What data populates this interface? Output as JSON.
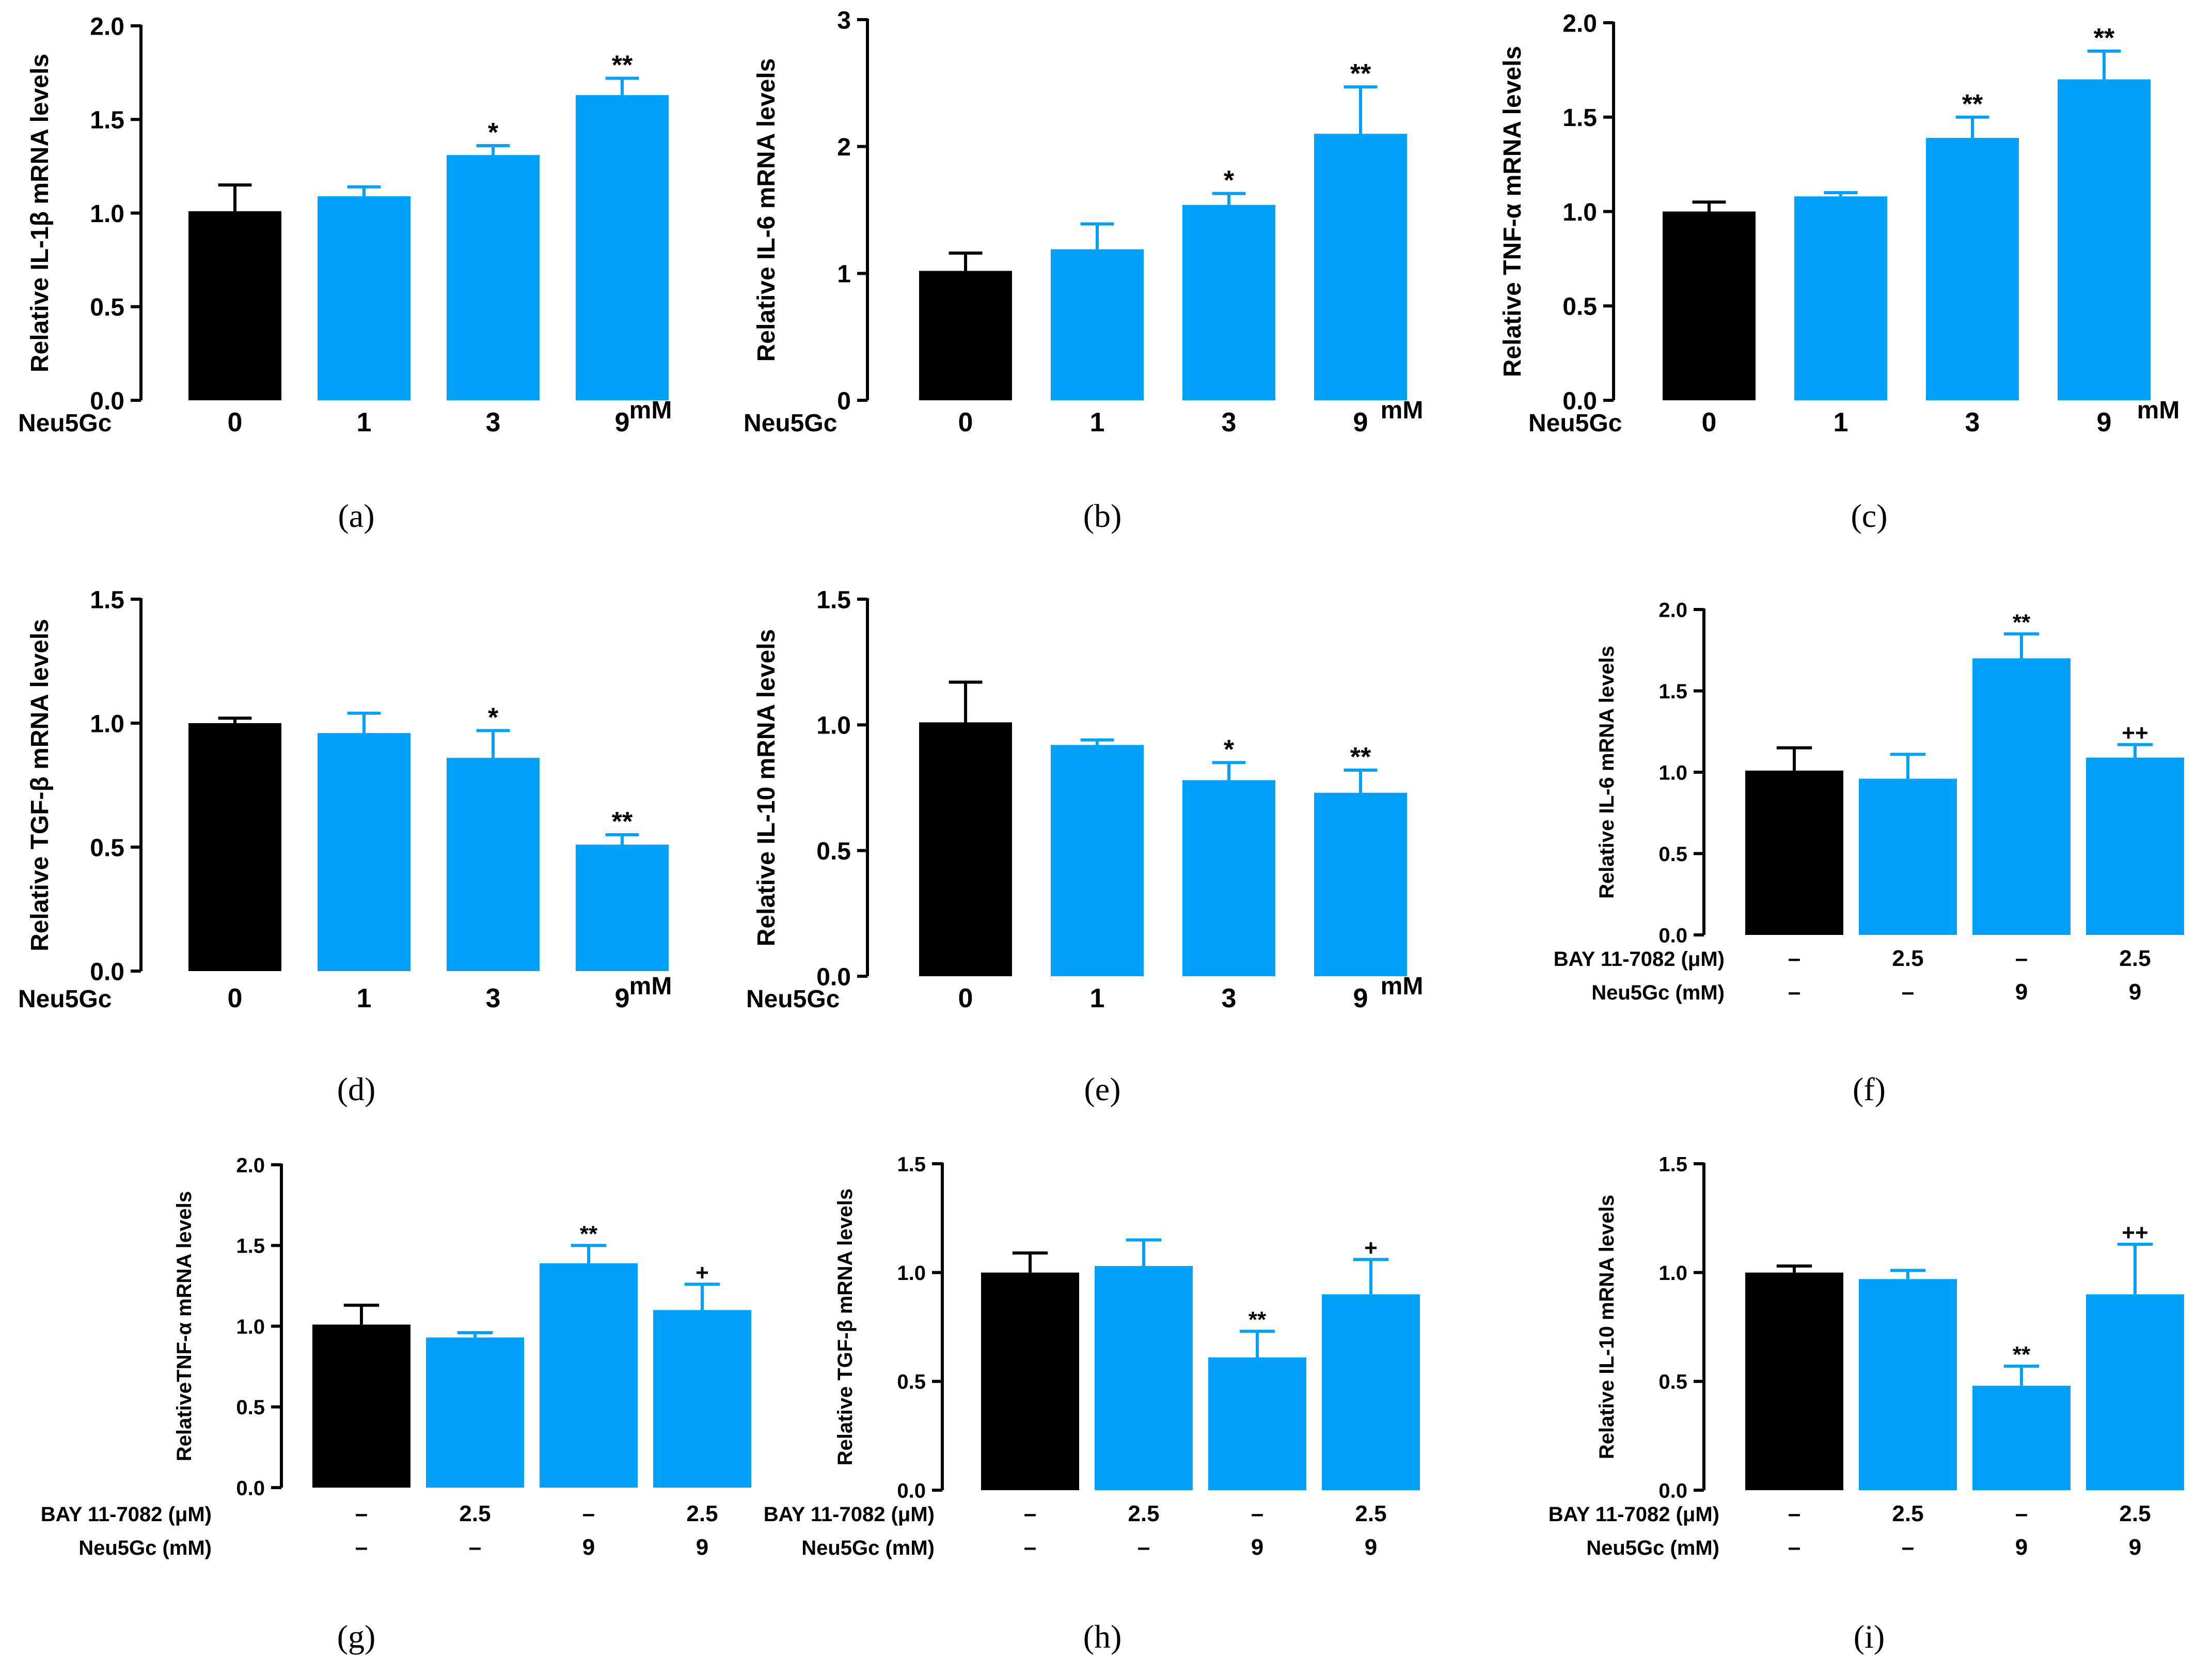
{
  "colors": {
    "control": "#000000",
    "treated": "#00A0FB",
    "axis": "#000000"
  },
  "chart_data": [
    {
      "id": "a",
      "caption": "(a)",
      "type": "bar",
      "ylabel": "Relative IL-1β mRNA levels",
      "ylim": [
        0,
        2.0
      ],
      "yticks": [
        "0.0",
        "0.5",
        "1.0",
        "1.5",
        "2.0"
      ],
      "row_labels": [
        "Neu5Gc"
      ],
      "unit": "mM",
      "categories": [
        [
          "0"
        ],
        [
          "1"
        ],
        [
          "3"
        ],
        [
          "9"
        ]
      ],
      "values": [
        1.01,
        1.09,
        1.31,
        1.63
      ],
      "errors": [
        0.14,
        0.05,
        0.05,
        0.09
      ],
      "annotations": [
        "",
        "",
        "*",
        "**"
      ],
      "bar_colors": [
        "control",
        "treated",
        "treated",
        "treated"
      ]
    },
    {
      "id": "b",
      "caption": "(b)",
      "type": "bar",
      "ylabel": "Relative IL-6 mRNA levels",
      "ylim": [
        0,
        3
      ],
      "yticks": [
        "0",
        "1",
        "2",
        "3"
      ],
      "row_labels": [
        "Neu5Gc"
      ],
      "unit": "mM",
      "categories": [
        [
          "0"
        ],
        [
          "1"
        ],
        [
          "3"
        ],
        [
          "9"
        ]
      ],
      "values": [
        1.02,
        1.19,
        1.54,
        2.1
      ],
      "errors": [
        0.14,
        0.2,
        0.09,
        0.37
      ],
      "annotations": [
        "",
        "",
        "*",
        "**"
      ],
      "bar_colors": [
        "control",
        "treated",
        "treated",
        "treated"
      ]
    },
    {
      "id": "c",
      "caption": "(c)",
      "type": "bar",
      "ylabel": "Relative TNF-α mRNA levels",
      "ylim": [
        0,
        2.0
      ],
      "yticks": [
        "0.0",
        "0.5",
        "1.0",
        "1.5",
        "2.0"
      ],
      "row_labels": [
        "Neu5Gc"
      ],
      "unit": "mM",
      "categories": [
        [
          "0"
        ],
        [
          "1"
        ],
        [
          "3"
        ],
        [
          "9"
        ]
      ],
      "values": [
        1.0,
        1.08,
        1.39,
        1.7
      ],
      "errors": [
        0.05,
        0.02,
        0.11,
        0.15
      ],
      "annotations": [
        "",
        "",
        "**",
        "**"
      ],
      "bar_colors": [
        "control",
        "treated",
        "treated",
        "treated"
      ]
    },
    {
      "id": "d",
      "caption": "(d)",
      "type": "bar",
      "ylabel": "Relative TGF-β mRNA levels",
      "ylim": [
        0,
        1.5
      ],
      "yticks": [
        "0.0",
        "0.5",
        "1.0",
        "1.5"
      ],
      "row_labels": [
        "Neu5Gc"
      ],
      "unit": "mM",
      "categories": [
        [
          "0"
        ],
        [
          "1"
        ],
        [
          "3"
        ],
        [
          "9"
        ]
      ],
      "values": [
        1.0,
        0.96,
        0.86,
        0.51
      ],
      "errors": [
        0.02,
        0.08,
        0.11,
        0.04
      ],
      "annotations": [
        "",
        "",
        "*",
        "**"
      ],
      "bar_colors": [
        "control",
        "treated",
        "treated",
        "treated"
      ]
    },
    {
      "id": "e",
      "caption": "(e)",
      "type": "bar",
      "ylabel": "Relative IL-10 mRNA levels",
      "ylim": [
        0,
        1.5
      ],
      "yticks": [
        "0.0",
        "0.5",
        "1.0",
        "1.5"
      ],
      "row_labels": [
        "Neu5Gc"
      ],
      "unit": "mM",
      "categories": [
        [
          "0"
        ],
        [
          "1"
        ],
        [
          "3"
        ],
        [
          "9"
        ]
      ],
      "values": [
        1.01,
        0.92,
        0.78,
        0.73
      ],
      "errors": [
        0.16,
        0.02,
        0.07,
        0.09
      ],
      "annotations": [
        "",
        "",
        "*",
        "**"
      ],
      "bar_colors": [
        "control",
        "treated",
        "treated",
        "treated"
      ]
    },
    {
      "id": "f",
      "caption": "(f)",
      "type": "bar",
      "ylabel": "Relative IL-6 mRNA levels",
      "ylim": [
        0,
        2.0
      ],
      "yticks": [
        "0.0",
        "0.5",
        "1.0",
        "1.5",
        "2.0"
      ],
      "row_labels": [
        "BAY 11-7082 (μM)",
        "Neu5Gc (mM)"
      ],
      "unit": "",
      "categories": [
        [
          "–",
          "–"
        ],
        [
          "2.5",
          "–"
        ],
        [
          "–",
          "9"
        ],
        [
          "2.5",
          "9"
        ]
      ],
      "values": [
        1.01,
        0.96,
        1.7,
        1.09
      ],
      "errors": [
        0.14,
        0.15,
        0.15,
        0.08
      ],
      "annotations": [
        "",
        "",
        "**",
        "++"
      ],
      "bar_colors": [
        "control",
        "treated",
        "treated",
        "treated"
      ]
    },
    {
      "id": "g",
      "caption": "(g)",
      "type": "bar",
      "ylabel": "RelativeTNF-α mRNA levels",
      "ylim": [
        0,
        2.0
      ],
      "yticks": [
        "0.0",
        "0.5",
        "1.0",
        "1.5",
        "2.0"
      ],
      "row_labels": [
        "BAY 11-7082 (μM)",
        "Neu5Gc (mM)"
      ],
      "unit": "",
      "categories": [
        [
          "–",
          "–"
        ],
        [
          "2.5",
          "–"
        ],
        [
          "–",
          "9"
        ],
        [
          "2.5",
          "9"
        ]
      ],
      "values": [
        1.01,
        0.93,
        1.39,
        1.1
      ],
      "errors": [
        0.12,
        0.03,
        0.11,
        0.16
      ],
      "annotations": [
        "",
        "",
        "**",
        "+"
      ],
      "bar_colors": [
        "control",
        "treated",
        "treated",
        "treated"
      ]
    },
    {
      "id": "h",
      "caption": "(h)",
      "type": "bar",
      "ylabel": "Relative TGF-β mRNA levels",
      "ylim": [
        0,
        1.5
      ],
      "yticks": [
        "0.0",
        "0.5",
        "1.0",
        "1.5"
      ],
      "row_labels": [
        "BAY 11-7082 (μM)",
        "Neu5Gc (mM)"
      ],
      "unit": "",
      "categories": [
        [
          "–",
          "–"
        ],
        [
          "2.5",
          "–"
        ],
        [
          "–",
          "9"
        ],
        [
          "2.5",
          "9"
        ]
      ],
      "values": [
        1.0,
        1.03,
        0.61,
        0.9
      ],
      "errors": [
        0.09,
        0.12,
        0.12,
        0.16
      ],
      "annotations": [
        "",
        "",
        "**",
        "+"
      ],
      "bar_colors": [
        "control",
        "treated",
        "treated",
        "treated"
      ]
    },
    {
      "id": "i",
      "caption": "(i)",
      "type": "bar",
      "ylabel": "Relative IL-10 mRNA levels",
      "ylim": [
        0,
        1.5
      ],
      "yticks": [
        "0.0",
        "0.5",
        "1.0",
        "1.5"
      ],
      "row_labels": [
        "BAY 11-7082 (μM)",
        "Neu5Gc (mM)"
      ],
      "unit": "",
      "categories": [
        [
          "–",
          "–"
        ],
        [
          "2.5",
          "–"
        ],
        [
          "–",
          "9"
        ],
        [
          "2.5",
          "9"
        ]
      ],
      "values": [
        1.0,
        0.97,
        0.48,
        0.9
      ],
      "errors": [
        0.03,
        0.04,
        0.09,
        0.23
      ],
      "annotations": [
        "",
        "",
        "**",
        "++"
      ],
      "bar_colors": [
        "control",
        "treated",
        "treated",
        "treated"
      ]
    }
  ]
}
